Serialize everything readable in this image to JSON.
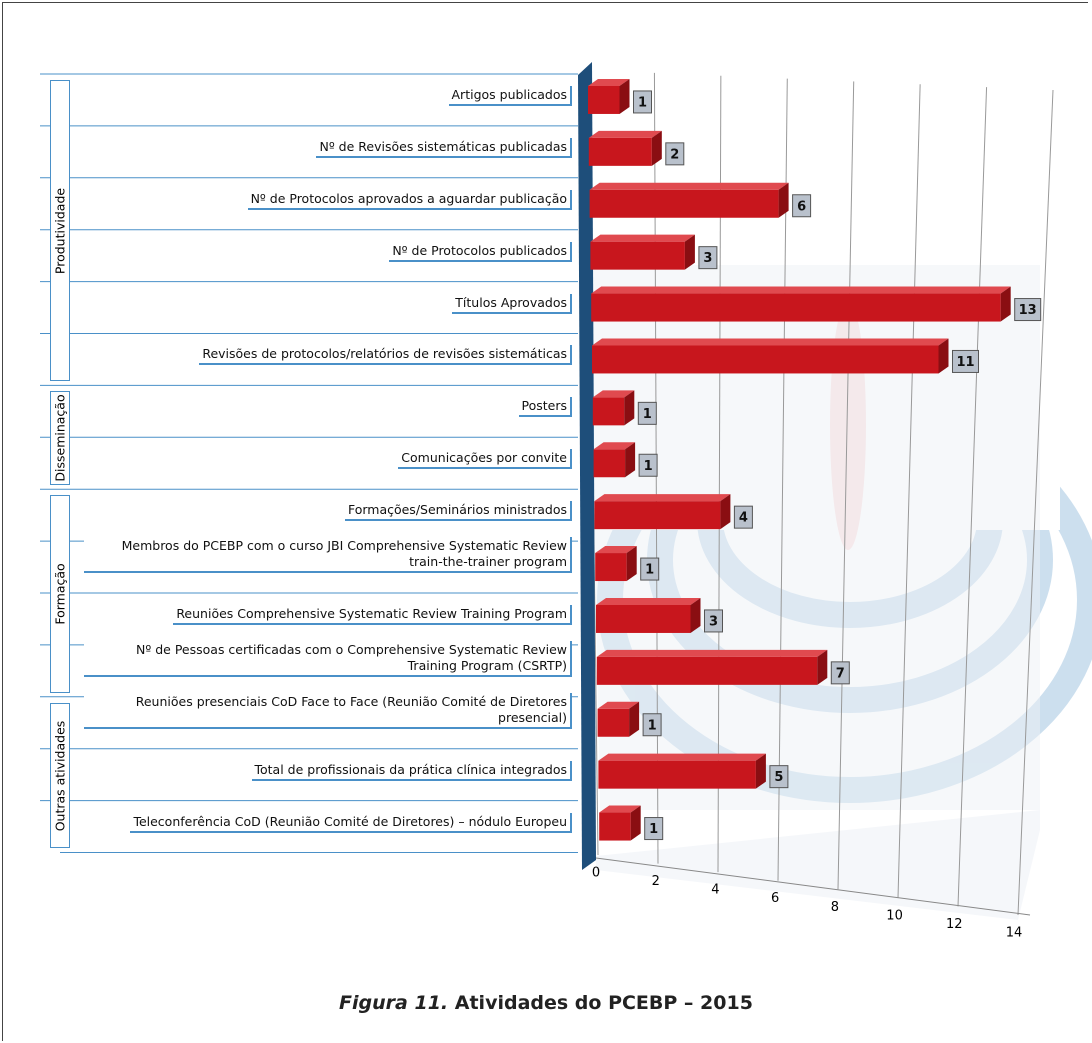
{
  "chart_data": {
    "type": "bar",
    "orientation": "horizontal",
    "caption_label": "Figura 11.",
    "title": "Atividades do PCEBP – 2015",
    "color": "#c8161d",
    "groups": [
      {
        "name": "Produtividade",
        "categories": [
          "Artigos publicados",
          "Nº de Revisões sistemáticas publicadas",
          "Nº de Protocolos aprovados a aguardar publicação",
          "Nº de Protocolos publicados",
          "Títulos Aprovados",
          "Revisões de protocolos/relatórios de revisões sistemáticas"
        ],
        "values": [
          1,
          2,
          6,
          3,
          13,
          11
        ]
      },
      {
        "name": "Disseminação",
        "categories": [
          "Posters",
          "Comunicações por convite"
        ],
        "values": [
          1,
          1
        ]
      },
      {
        "name": "Formação",
        "categories": [
          "Formações/Seminários ministrados",
          "Membros do PCEBP com o curso JBI Comprehensive Systematic Review train-the-trainer program",
          "Reuniões Comprehensive Systematic Review Training Program",
          "Nº de Pessoas certificadas com o Comprehensive Systematic Review Training Program (CSRTP)"
        ],
        "values": [
          4,
          1,
          3,
          7
        ]
      },
      {
        "name": "Outras atividades",
        "categories": [
          "Reuniões presenciais CoD Face to Face (Reunião Comité de Diretores presencial)",
          "Total de profissionais da prática clínica integrados",
          "Teleconferência CoD (Reunião Comité de Diretores) – nódulo Europeu"
        ],
        "values": [
          1,
          5,
          1
        ]
      }
    ],
    "xlim": [
      0,
      14
    ],
    "xticks": [
      0,
      2,
      4,
      6,
      8,
      10,
      12,
      14
    ],
    "grid": true
  }
}
